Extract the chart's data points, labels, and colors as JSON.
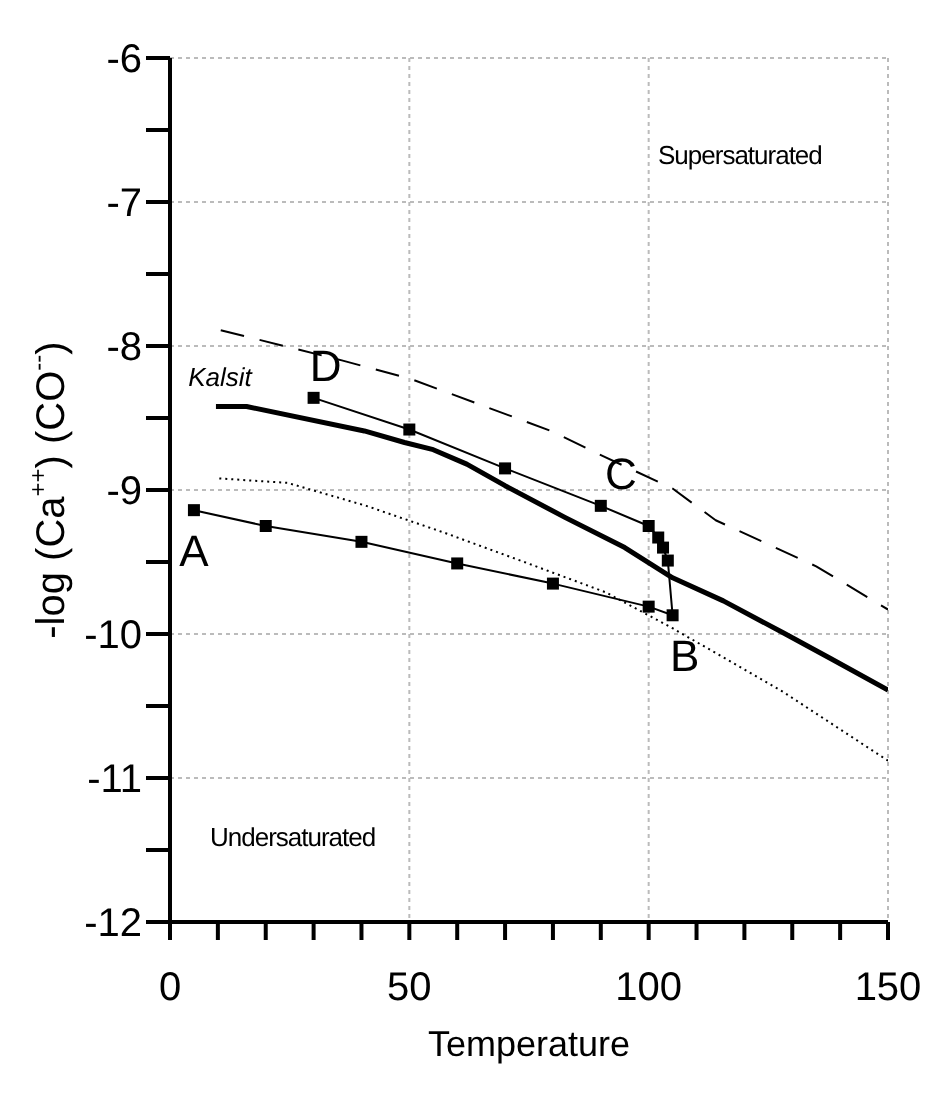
{
  "chart_data": {
    "type": "line",
    "xlabel": "Temperature",
    "ylabel": "-log (Ca$^{++}$) (CO$^{--}$)",
    "xlim": [
      0,
      150
    ],
    "xticks": [
      0,
      {
        "value": 10,
        "label": null
      },
      {
        "value": 20,
        "label": null
      },
      {
        "value": 30,
        "label": null
      },
      {
        "value": 40,
        "label": null
      },
      50,
      {
        "value": 60,
        "label": null
      },
      {
        "value": 70,
        "label": null
      },
      {
        "value": 80,
        "label": null
      },
      {
        "value": 90,
        "label": null
      },
      100,
      {
        "value": 110,
        "label": null
      },
      {
        "value": 120,
        "label": null
      },
      {
        "value": 130,
        "label": null
      },
      {
        "value": 140,
        "label": null
      },
      150
    ],
    "ylim": [
      -12,
      -6
    ],
    "yticks": [
      -12,
      {
        "value": -11.5,
        "label": null
      },
      -11,
      {
        "value": -10.5,
        "label": null
      },
      -10,
      {
        "value": -9.5,
        "label": null
      },
      -9,
      {
        "value": -8.5,
        "label": null
      },
      -8,
      {
        "value": -7.5,
        "label": null
      },
      -7,
      {
        "value": -6.5,
        "label": null
      },
      -6
    ],
    "grid": true,
    "series": [
      {
        "name": "Kalsit",
        "color": "#000000",
        "line_style": "solid",
        "marker": "none",
        "x": [
          9.6,
          16,
          40.6,
          49,
          55,
          62,
          70,
          82.5,
          95,
          105,
          115.6,
          128,
          138,
          150
        ],
        "values": [
          -8.42,
          -8.42,
          -8.59,
          -8.67,
          -8.72,
          -8.82,
          -8.97,
          -9.19,
          -9.4,
          -9.61,
          -9.77,
          -9.99,
          -10.17,
          -10.39
        ]
      },
      {
        "color": "#000000",
        "line_style": "dashed",
        "marker": "none",
        "x": [
          10.6,
          35.9,
          50.4,
          79.6,
          90.8,
          105,
          114,
          135,
          150
        ],
        "values": [
          -7.89,
          -8.1,
          -8.23,
          -8.59,
          -8.77,
          -8.99,
          -9.21,
          -9.53,
          -9.83
        ]
      },
      {
        "color": "#000000",
        "line_style": "dotted",
        "marker": "none",
        "x": [
          10.3,
          24.5,
          41,
          57.6,
          74,
          91,
          105,
          128,
          150
        ],
        "values": [
          -8.92,
          -8.95,
          -9.11,
          -9.3,
          -9.5,
          -9.71,
          -9.96,
          -10.4,
          -10.88
        ]
      },
      {
        "color": "#000000",
        "line_style": "solid",
        "marker": "square",
        "x": [
          5,
          20,
          40,
          60,
          80,
          100,
          105,
          104,
          103,
          102,
          100,
          90,
          70,
          50,
          30
        ],
        "values": [
          -9.14,
          -9.25,
          -9.36,
          -9.51,
          -9.65,
          -9.81,
          -9.87,
          -9.49,
          -9.4,
          -9.33,
          -9.25,
          -9.11,
          -8.85,
          -8.58,
          -8.36
        ]
      }
    ],
    "annotations": [
      {
        "text": "A",
        "x": 5,
        "y": -9.14
      },
      {
        "text": "B",
        "x": 105,
        "y": -9.87
      },
      {
        "text": "C",
        "x": 90,
        "y": -9.11
      },
      {
        "text": "D",
        "x": 30,
        "y": -8.36
      },
      "Supersaturated",
      "Undersaturated"
    ]
  }
}
